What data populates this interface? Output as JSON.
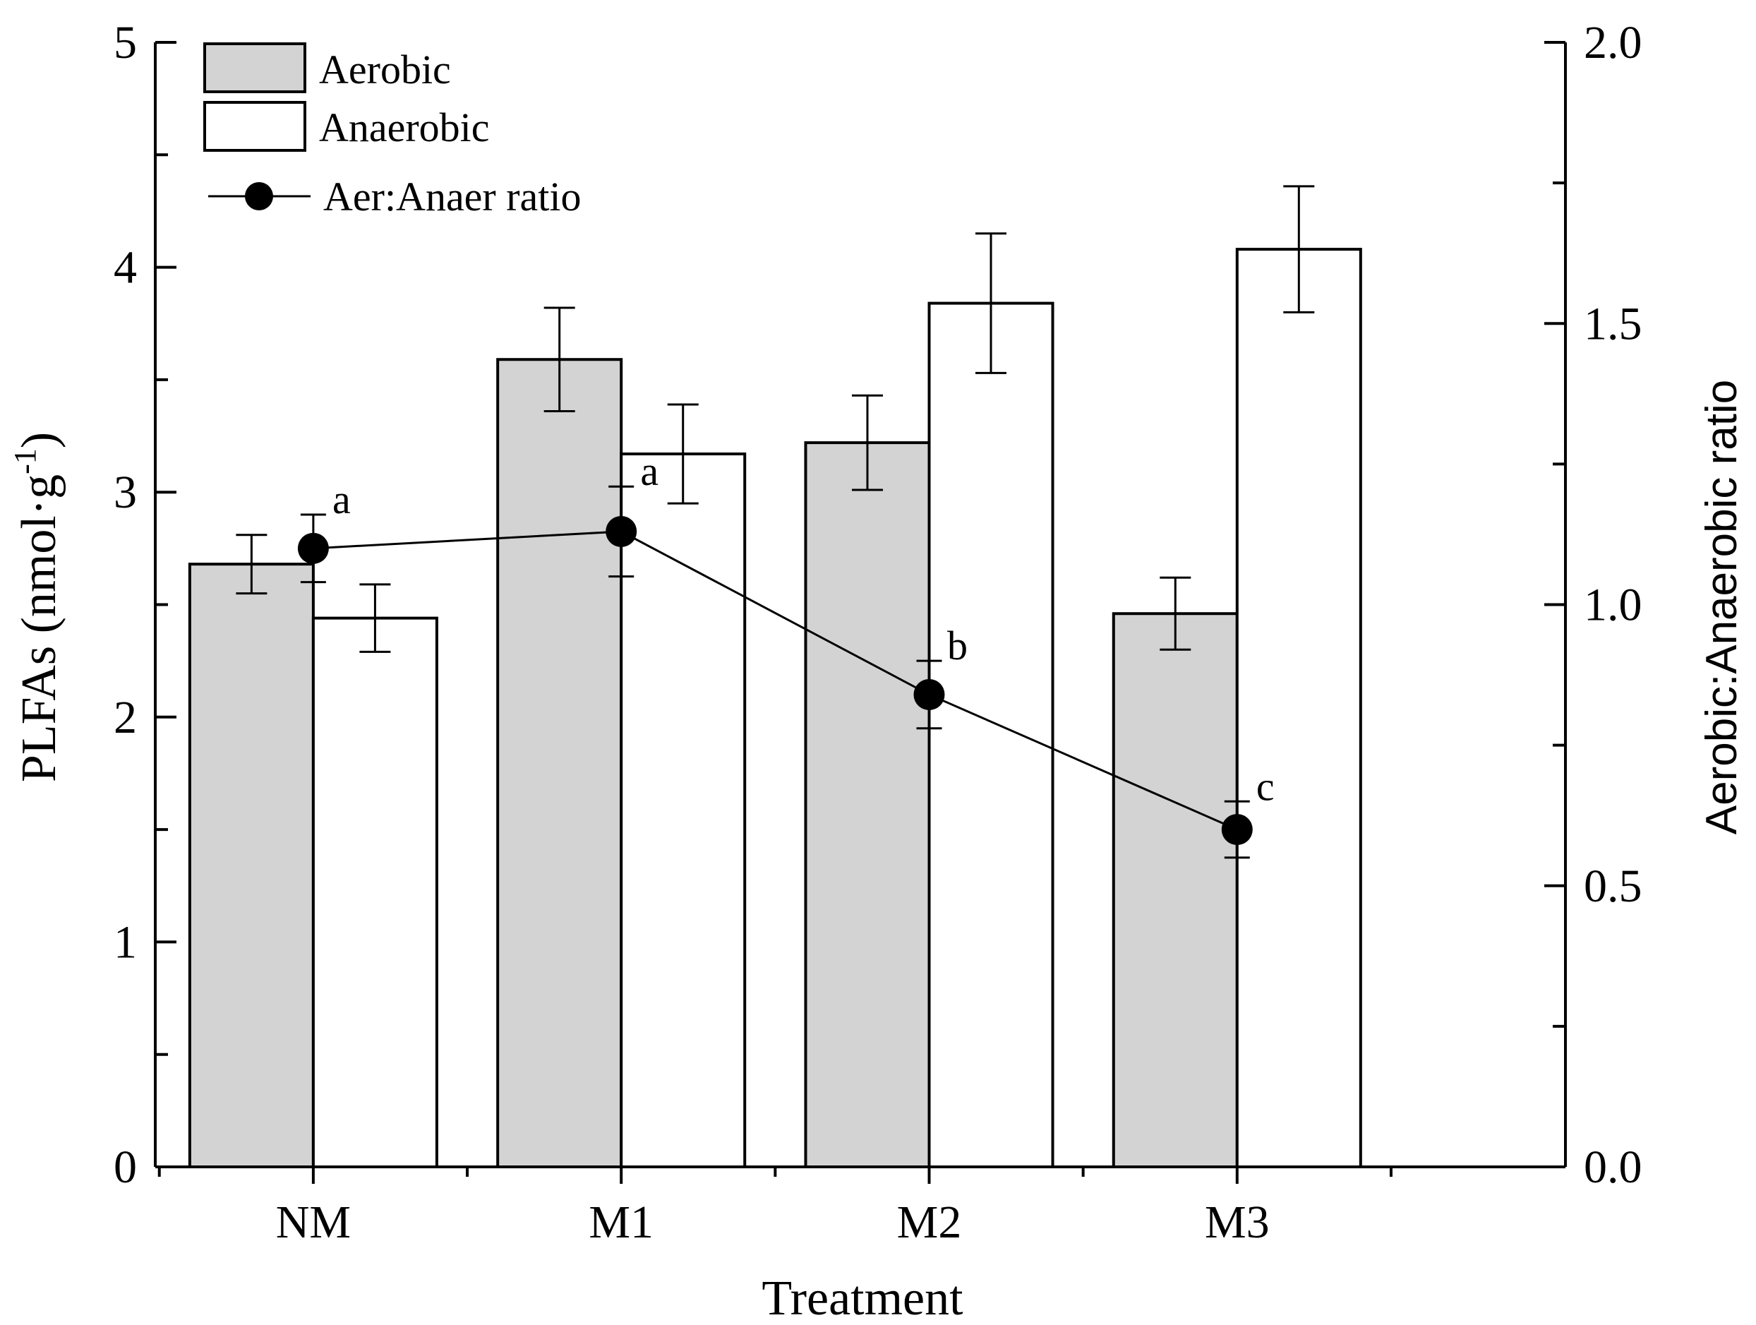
{
  "chart_data": {
    "type": "bar",
    "categories": [
      "NM",
      "M1",
      "M2",
      "M3"
    ],
    "series": [
      {
        "name": "Aerobic",
        "axis": "left",
        "kind": "bar",
        "color": "#d3d3d3",
        "values": [
          2.68,
          3.59,
          3.22,
          2.46
        ],
        "errors": [
          0.13,
          0.23,
          0.21,
          0.16
        ]
      },
      {
        "name": "Anaerobic",
        "axis": "left",
        "kind": "bar",
        "color": "#ffffff",
        "values": [
          2.44,
          3.17,
          3.84,
          4.08
        ],
        "errors": [
          0.15,
          0.22,
          0.31,
          0.28
        ]
      },
      {
        "name": "Aer:Anaer ratio",
        "axis": "right",
        "kind": "line",
        "color": "#000000",
        "values": [
          1.1,
          1.13,
          0.84,
          0.6
        ],
        "errors": [
          0.06,
          0.08,
          0.06,
          0.05
        ],
        "labels": [
          "a",
          "a",
          "b",
          "c"
        ]
      }
    ],
    "xlabel": "Treatment",
    "ylabel_left": {
      "main": "PLFAs (nmol·g",
      "sup": "-1",
      "end": ")"
    },
    "ylabel_right": "Aerobic:Anaerobic ratio",
    "ylim_left": [
      0,
      5
    ],
    "ylim_right": [
      0,
      2.0
    ],
    "yticks_left": [
      "0",
      "1",
      "2",
      "3",
      "4",
      "5"
    ],
    "yticks_right": [
      "0.0",
      "0.5",
      "1.0",
      "1.5",
      "2.0"
    ],
    "legend": {
      "placement": "top-left",
      "entries": [
        "Aerobic",
        "Anaerobic",
        "Aer:Anaer ratio"
      ]
    }
  }
}
